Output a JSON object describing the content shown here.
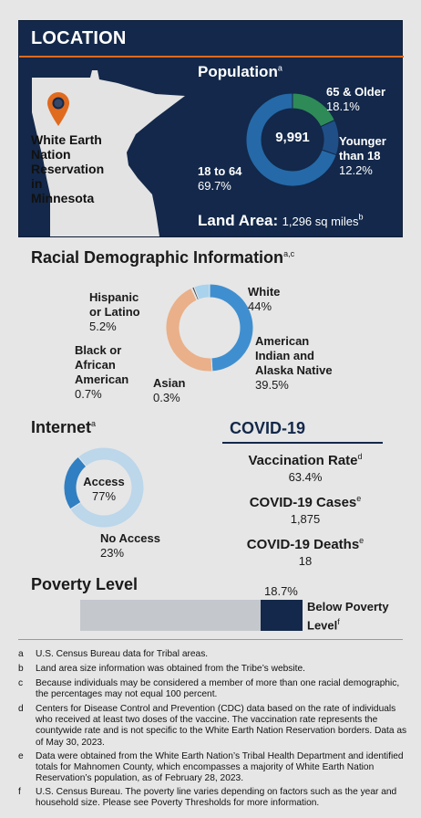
{
  "location": {
    "title": "LOCATION",
    "map_label": "White Earth Nation Reservation in Minnesota",
    "map_label_lines": [
      "White Earth",
      "Nation",
      "Reservation",
      "in",
      "Minnesota"
    ],
    "population": {
      "title": "Population",
      "title_sup": "a",
      "total": "9,991",
      "segments": [
        {
          "label": "65 & Older",
          "label_lines": [
            "65 & Older"
          ],
          "value_text": "18.1%",
          "value": 18.1,
          "color": "#2e8b57"
        },
        {
          "label": "Younger than 18",
          "label_lines": [
            "Younger",
            "than 18"
          ],
          "value_text": "12.2%",
          "value": 12.2,
          "color": "#1f4f86"
        },
        {
          "label": "18 to 64",
          "label_lines": [
            "18 to 64"
          ],
          "value_text": "69.7%",
          "value": 69.7,
          "color": "#2569a8"
        }
      ]
    },
    "land_area": {
      "label": "Land Area:",
      "value": "1,296 sq miles",
      "sup": "b"
    }
  },
  "racial": {
    "title": "Racial Demographic Information",
    "title_sup": "a,c",
    "segments": [
      {
        "label": "White",
        "label_lines": [
          "White"
        ],
        "value_text": "44%",
        "value": 44,
        "color": "#3f8fd0"
      },
      {
        "label": "American Indian and Alaska Native",
        "label_lines": [
          "American",
          "Indian and",
          "Alaska Native"
        ],
        "value_text": "39.5%",
        "value": 39.5,
        "color": "#eab089"
      },
      {
        "label": "Asian",
        "label_lines": [
          "Asian"
        ],
        "value_text": "0.3%",
        "value": 0.3,
        "color": "#6a6a6a"
      },
      {
        "label": "Black or African American",
        "label_lines": [
          "Black or",
          "African",
          "American"
        ],
        "value_text": "0.7%",
        "value": 0.7,
        "color": "#4a4a4a"
      },
      {
        "label": "Hispanic or Latino",
        "label_lines": [
          "Hispanic",
          "or Latino"
        ],
        "value_text": "5.2%",
        "value": 5.2,
        "color": "#a9d2ec"
      }
    ]
  },
  "internet": {
    "title": "Internet",
    "title_sup": "a",
    "segments": [
      {
        "label": "Access",
        "value_text": "77%",
        "value": 77,
        "color": "#bcd6ea"
      },
      {
        "label": "No Access",
        "value_text": "23%",
        "value": 23,
        "color": "#2f7fc2"
      }
    ]
  },
  "covid": {
    "title": "COVID-19",
    "title_color": "#13284a",
    "stats": [
      {
        "label": "Vaccination Rate",
        "sup": "d",
        "value": "63.4%"
      },
      {
        "label": "COVID-19 Cases",
        "sup": "e",
        "value": "1,875"
      },
      {
        "label": "COVID-19 Deaths",
        "sup": "e",
        "value": "18"
      }
    ]
  },
  "poverty": {
    "title": "Poverty Level",
    "value_text": "18.7%",
    "value": 18.7,
    "label_lines": [
      "Below Poverty",
      "Level"
    ],
    "label_sup": "f",
    "bar_color": "#13284a",
    "track_color": "#c4c7cc"
  },
  "footnotes": [
    {
      "key": "a",
      "text": "U.S. Census Bureau data for Tribal areas."
    },
    {
      "key": "b",
      "text": "Land area size information was obtained from the Tribe’s website."
    },
    {
      "key": "c",
      "text": "Because individuals may be considered a member of more than one racial demographic, the percentages may not equal 100 percent."
    },
    {
      "key": "d",
      "text": "Centers for Disease Control and Prevention (CDC) data based on the rate of individuals who received at least two doses of the vaccine. The vaccination rate represents the countywide rate and is not specific to the White Earth Nation Reservation borders. Data as of May 30, 2023."
    },
    {
      "key": "e",
      "text": "Data were obtained from the White Earth Nation’s Tribal Health Department and identified totals for Mahnomen County, which encompasses a majority of White Earth Nation Reservation’s population, as of February 28, 2023."
    },
    {
      "key": "f",
      "text": "U.S. Census Bureau. The poverty line varies depending on factors such as the year and household size. Please see Poverty Thresholds for more information."
    }
  ],
  "colors": {
    "navy": "#13284a",
    "orange": "#e06a1e",
    "page_bg": "#e6e6e6",
    "map_fill": "#e3e3e3"
  },
  "icons": {
    "pin": "map-pin-icon"
  }
}
